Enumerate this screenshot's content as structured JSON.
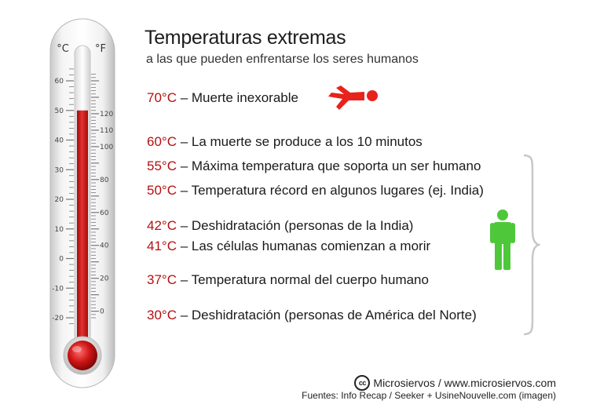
{
  "header": {
    "title": "Temperaturas extremas",
    "subtitle": "a las que pueden enfrentarse los seres humanos"
  },
  "thermometer": {
    "celsius_label": "°C",
    "fahrenheit_label": "°F",
    "celsius_ticks": [
      "60",
      "50",
      "40",
      "30",
      "20",
      "10",
      "0",
      "-10",
      "-20"
    ],
    "fahrenheit_ticks": [
      "120",
      "110",
      "100",
      "80",
      "60",
      "40",
      "20",
      "0"
    ],
    "mercury_level_celsius": 50,
    "colors": {
      "mercury": "#d42020",
      "bulb": "#c41010",
      "tube": "#f2f2f2"
    }
  },
  "rows": [
    {
      "temp": "70°C",
      "text": " – Muerte inexorable"
    },
    {
      "temp": "60°C",
      "text": " – La muerte se produce a los 10 minutos"
    },
    {
      "temp": "55°C",
      "text": " – Máxima temperatura que soporta un ser humano"
    },
    {
      "temp": "50°C",
      "text": " – Temperatura récord en algunos lugares (ej. India)"
    },
    {
      "temp": "42°C",
      "text": " – Deshidratación (personas de la India)"
    },
    {
      "temp": "41°C",
      "text": " – Las células humanas comienzan a morir"
    },
    {
      "temp": "37°C",
      "text": " – Temperatura normal del cuerpo humano"
    },
    {
      "temp": "30°C",
      "text": " – Deshidratación (personas de América del Norte)"
    }
  ],
  "icons": {
    "dead": "fallen-person-icon",
    "alive": "standing-person-icon",
    "dead_color": "#e8221c",
    "alive_color": "#4ec83a"
  },
  "footer": {
    "cc_symbol": "cc",
    "credit": "Microsiervos / www.microsiervos.com",
    "sources": "Fuentes: Info Recap / Seeker + UsineNouvelle.com (imagen)"
  }
}
